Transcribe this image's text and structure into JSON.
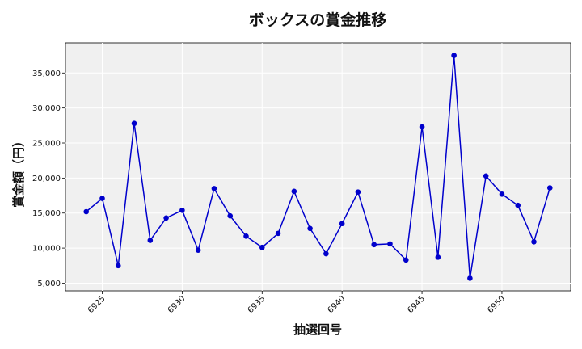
{
  "chart_data": {
    "type": "line",
    "title": "ボックスの賞金推移",
    "xlabel": "抽選回号",
    "ylabel": "賞金額（円）",
    "x": [
      6924,
      6925,
      6926,
      6927,
      6928,
      6929,
      6930,
      6931,
      6932,
      6933,
      6934,
      6935,
      6936,
      6937,
      6938,
      6939,
      6940,
      6941,
      6942,
      6943,
      6944,
      6945,
      6946,
      6947,
      6948,
      6949,
      6950,
      6951,
      6952,
      6953
    ],
    "series": [
      {
        "values": [
          15200,
          17100,
          7500,
          27800,
          11100,
          14300,
          15400,
          9700,
          18500,
          14600,
          11700,
          10100,
          12100,
          18100,
          12800,
          9200,
          13500,
          18000,
          10500,
          10600,
          8300,
          27300,
          8700,
          37500,
          5700,
          20300,
          17700,
          16100,
          10900,
          18600
        ],
        "color": "#0000cc"
      }
    ],
    "x_ticks": [
      6925,
      6930,
      6935,
      6940,
      6945,
      6950
    ],
    "y_ticks": [
      5000,
      10000,
      15000,
      20000,
      25000,
      30000,
      35000
    ],
    "xlim": [
      6922.7,
      6954.3
    ],
    "ylim": [
      3900,
      39300
    ],
    "grid": true,
    "background": "#f0f0f0"
  }
}
